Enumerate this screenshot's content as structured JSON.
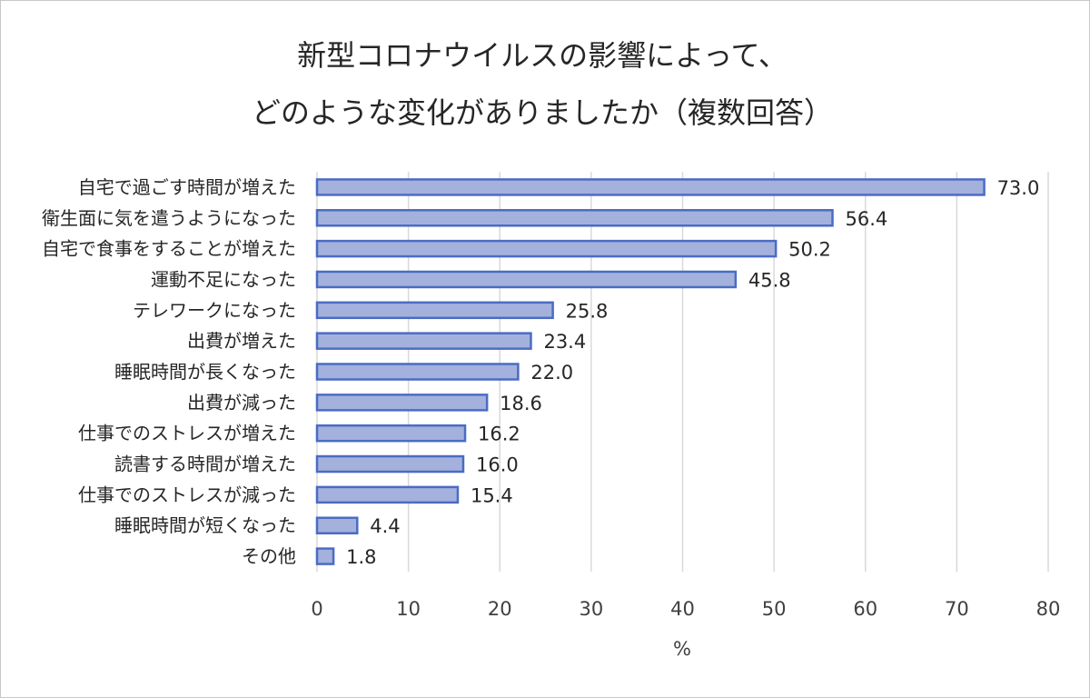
{
  "chart_data": {
    "type": "bar",
    "orientation": "horizontal",
    "title_lines": [
      "新型コロナウイルスの影響によって、",
      "どのような変化がありましたか（複数回答）"
    ],
    "categories": [
      "自宅で過ごす時間が増えた",
      "衛生面に気を遣うようになった",
      "自宅で食事をすることが増えた",
      "運動不足になった",
      "テレワークになった",
      "出費が増えた",
      "睡眠時間が長くなった",
      "出費が減った",
      "仕事でのストレスが増えた",
      "読書する時間が増えた",
      "仕事でのストレスが減った",
      "睡眠時間が短くなった",
      "その他"
    ],
    "values": [
      73.0,
      56.4,
      50.2,
      45.8,
      25.8,
      23.4,
      22.0,
      18.6,
      16.2,
      16.0,
      15.4,
      4.4,
      1.8
    ],
    "value_labels": [
      "73.0",
      "56.4",
      "50.2",
      "45.8",
      "25.8",
      "23.4",
      "22.0",
      "18.6",
      "16.2",
      "16.0",
      "15.4",
      "4.4",
      "1.8"
    ],
    "xlabel": "%",
    "xlim": [
      0,
      80
    ],
    "xticks": [
      0,
      10,
      20,
      30,
      40,
      50,
      60,
      70,
      80
    ],
    "xtick_labels": [
      "0",
      "10",
      "20",
      "30",
      "40",
      "50",
      "60",
      "70",
      "80"
    ],
    "grid": true,
    "colors": {
      "bar_fill": "#a3b1dc",
      "bar_stroke": "#4a6cc4",
      "grid": "#d9d9d9"
    }
  }
}
